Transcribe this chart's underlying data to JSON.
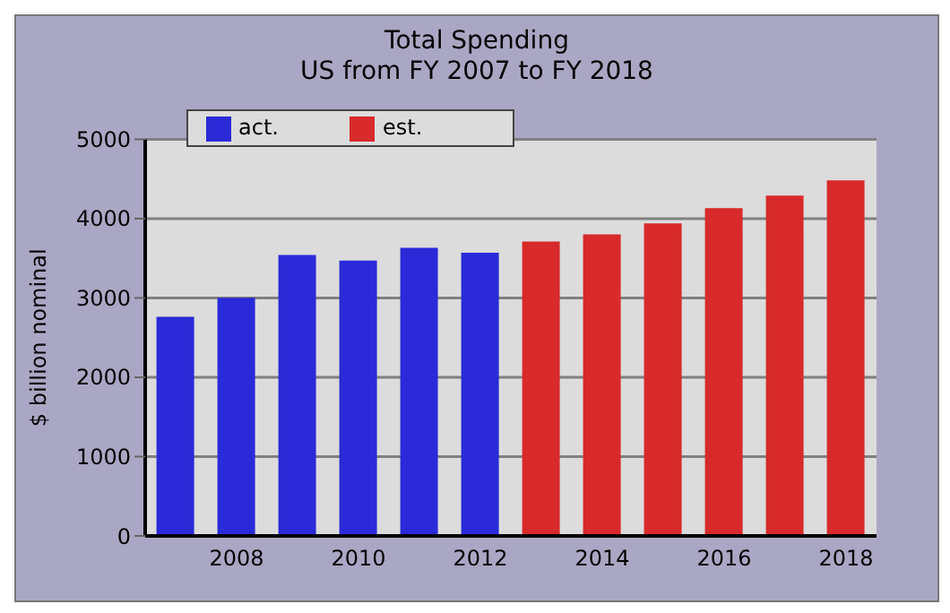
{
  "chart_data": {
    "type": "bar",
    "title": "Total Spending",
    "subtitle": "US from FY 2007 to FY 2018",
    "ylabel": "$ billion nominal",
    "categories": [
      null,
      "2008",
      null,
      "2010",
      null,
      "2012",
      null,
      "2014",
      null,
      "2016",
      null,
      "2018"
    ],
    "series": [
      {
        "name": "act.",
        "color": "#2a2ad8",
        "values": [
          2750,
          2990,
          3530,
          3460,
          3620,
          3560,
          null,
          null,
          null,
          null,
          null,
          null
        ]
      },
      {
        "name": "est.",
        "color": "#d82a2a",
        "values": [
          null,
          null,
          null,
          null,
          null,
          null,
          3700,
          3790,
          3930,
          4120,
          4280,
          4470
        ]
      }
    ],
    "stacked": true,
    "ylim": [
      0,
      5000
    ],
    "yticks": [
      0,
      1000,
      2000,
      3000,
      4000,
      5000
    ],
    "grid": "y",
    "legend": "top left"
  }
}
